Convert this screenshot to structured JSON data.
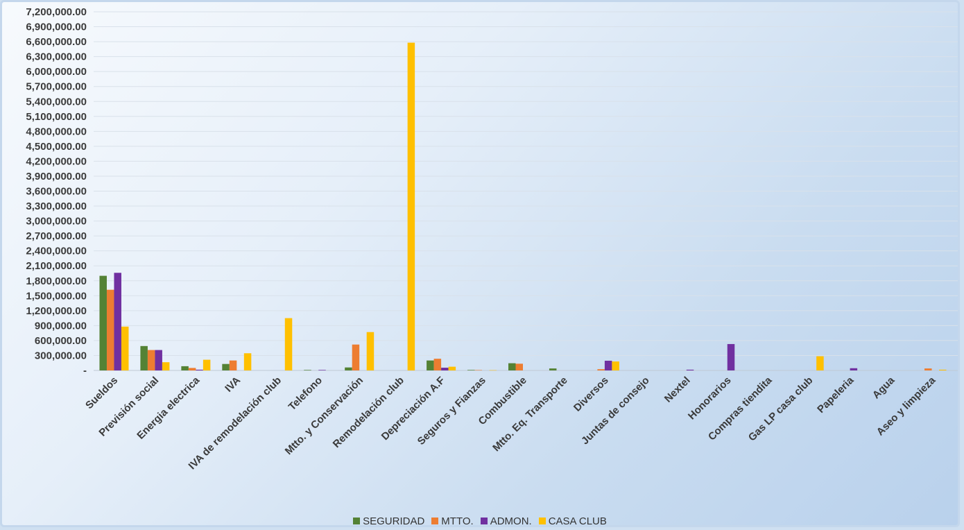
{
  "chart_data": {
    "type": "bar",
    "categories": [
      "Sueldos",
      "Previsión social",
      "Energia electrica",
      "IVA",
      "IVA de remodelación club",
      "Telefono",
      "Mtto. y Conservación",
      "Remodelación club",
      "Depreciación A.F",
      "Seguros y Fianzas",
      "Combustible",
      "Mtto. Eq. Transporte",
      "Diversos",
      "Juntas de consejo",
      "Nextel",
      "Honorarios",
      "Compras tiendita",
      "Gas LP casa club",
      "Papeleria",
      "Agua",
      "Aseo y limpieza"
    ],
    "series": [
      {
        "name": "SEGURIDAD",
        "color": "#548235",
        "values": [
          1900000,
          490000,
          85000,
          130000,
          0,
          10000,
          60000,
          0,
          200000,
          10000,
          145000,
          40000,
          0,
          0,
          0,
          0,
          0,
          0,
          0,
          0,
          0
        ]
      },
      {
        "name": "MTTO.",
        "color": "#ed7d31",
        "values": [
          1620000,
          410000,
          50000,
          200000,
          0,
          0,
          520000,
          0,
          235000,
          8000,
          135000,
          0,
          25000,
          0,
          0,
          0,
          0,
          0,
          0,
          0,
          40000
        ]
      },
      {
        "name": "ADMON.",
        "color": "#7030a0",
        "values": [
          1960000,
          410000,
          15000,
          0,
          0,
          10000,
          0,
          0,
          55000,
          0,
          0,
          0,
          195000,
          0,
          15000,
          530000,
          0,
          0,
          45000,
          0,
          0
        ]
      },
      {
        "name": "CASA CLUB",
        "color": "#ffc000",
        "values": [
          880000,
          165000,
          215000,
          345000,
          1050000,
          0,
          770000,
          6580000,
          75000,
          5000,
          0,
          0,
          180000,
          0,
          0,
          0,
          0,
          285000,
          0,
          0,
          15000
        ]
      }
    ],
    "y_ticks": [
      "-",
      "300,000.00",
      "600,000.00",
      "900,000.00",
      "1,200,000.00",
      "1,500,000.00",
      "1,800,000.00",
      "2,100,000.00",
      "2,400,000.00",
      "2,700,000.00",
      "3,000,000.00",
      "3,300,000.00",
      "3,600,000.00",
      "3,900,000.00",
      "4,200,000.00",
      "4,500,000.00",
      "4,800,000.00",
      "5,100,000.00",
      "5,400,000.00",
      "5,700,000.00",
      "6,000,000.00",
      "6,300,000.00",
      "6,600,000.00",
      "6,900,000.00",
      "7,200,000.00"
    ],
    "ylim": [
      0,
      7200000
    ],
    "ytick_step": 300000,
    "grid": true,
    "legend_position": "bottom",
    "title": "",
    "xlabel": "",
    "ylabel": ""
  }
}
